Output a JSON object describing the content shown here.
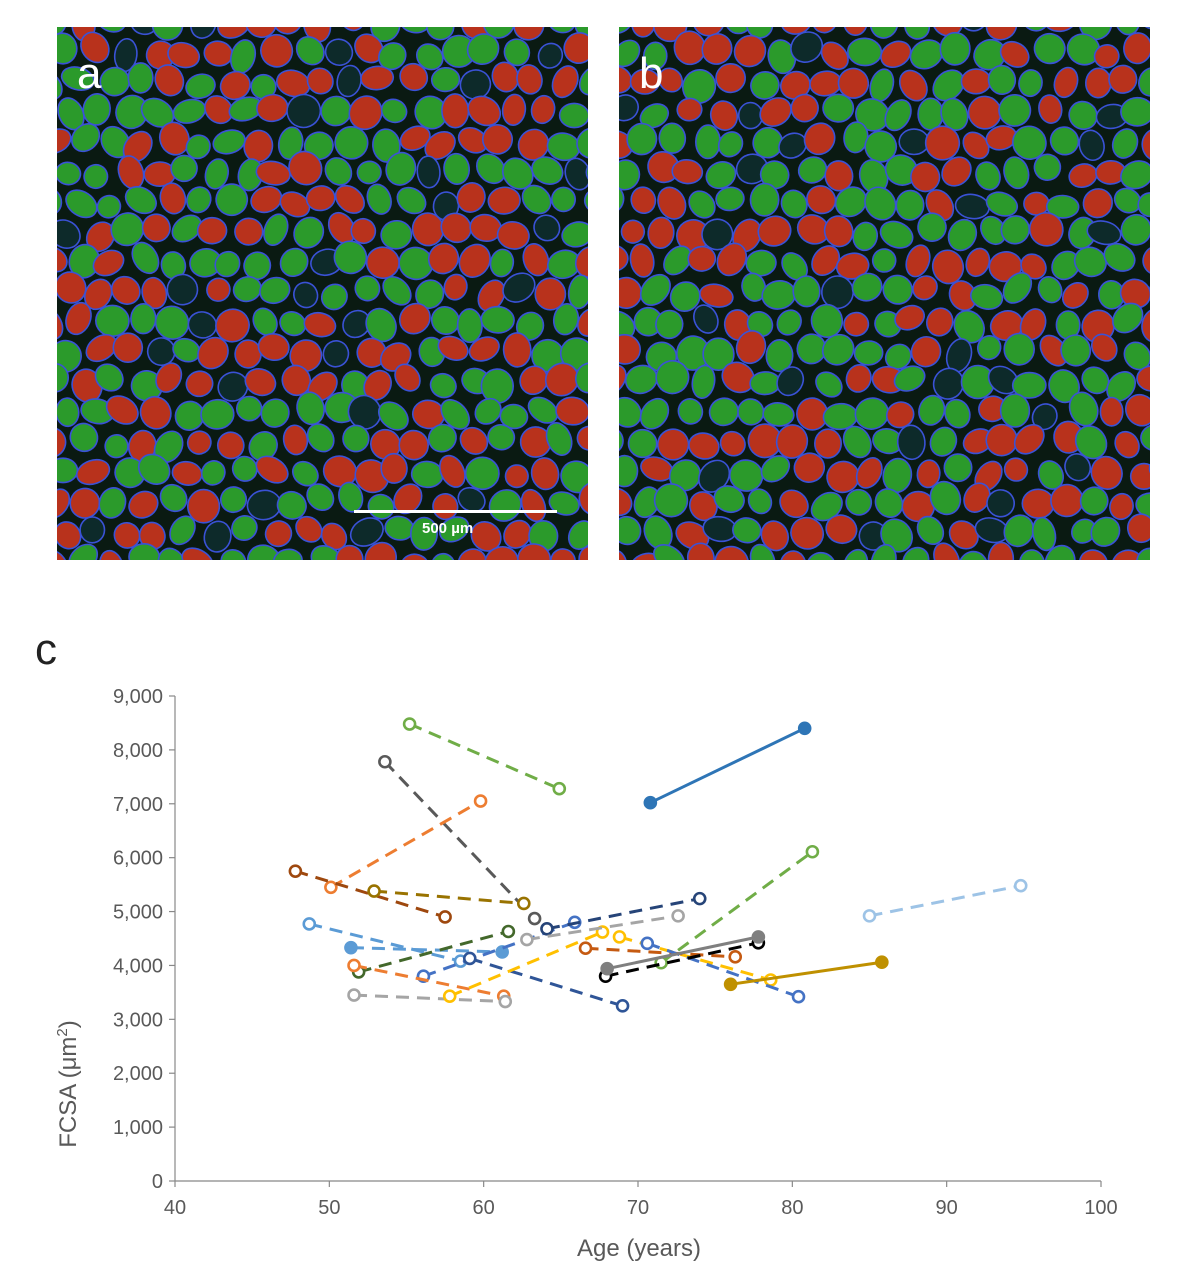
{
  "panels": {
    "a": {
      "label": "a",
      "scale_bar": "500 µm"
    },
    "b": {
      "label": "b"
    }
  },
  "chart_panel_label": "c",
  "colors": {
    "type1_fiber": "#2b9a2b",
    "type2_fiber": "#b8321c",
    "membrane": "#3a52d6"
  },
  "chart_data": {
    "type": "scatter",
    "title": "",
    "xlabel": "Age (years)",
    "ylabel_base": "FCSA (μm",
    "ylabel_sup": "2",
    "ylabel_end": ")",
    "xlim": [
      40,
      100
    ],
    "ylim": [
      0,
      9000
    ],
    "xticks": [
      40,
      50,
      60,
      70,
      80,
      90,
      100
    ],
    "yticks": [
      0,
      1000,
      2000,
      3000,
      4000,
      5000,
      6000,
      7000,
      8000,
      9000
    ],
    "ytick_labels": [
      "0",
      "1,000",
      "2,000",
      "3,000",
      "4,000",
      "5,000",
      "6,000",
      "7,000",
      "8,000",
      "9,000"
    ],
    "series": [
      {
        "color": "#70ad47",
        "dash": true,
        "filled": false,
        "points": [
          [
            55.2,
            8480
          ],
          [
            64.9,
            7280
          ]
        ]
      },
      {
        "color": "#2e75b6",
        "dash": false,
        "filled": true,
        "points": [
          [
            70.8,
            7020
          ],
          [
            80.8,
            8400
          ]
        ]
      },
      {
        "color": "#595959",
        "dash": true,
        "filled": false,
        "points": [
          [
            53.6,
            7780
          ],
          [
            63.3,
            4870
          ]
        ]
      },
      {
        "color": "#ed7d31",
        "dash": true,
        "filled": false,
        "points": [
          [
            50.1,
            5450
          ],
          [
            59.8,
            7050
          ]
        ]
      },
      {
        "color": "#9e480e",
        "dash": true,
        "filled": false,
        "points": [
          [
            47.8,
            5750
          ],
          [
            57.5,
            4900
          ]
        ]
      },
      {
        "color": "#997300",
        "dash": true,
        "filled": false,
        "points": [
          [
            52.9,
            5380
          ],
          [
            62.6,
            5150
          ]
        ]
      },
      {
        "color": "#70ad47",
        "dash": true,
        "filled": false,
        "points": [
          [
            71.5,
            4050
          ],
          [
            81.3,
            6110
          ]
        ]
      },
      {
        "color": "#9dc3e6",
        "dash": true,
        "filled": false,
        "points": [
          [
            85.0,
            4920
          ],
          [
            94.8,
            5480
          ]
        ]
      },
      {
        "color": "#5b9bd5",
        "dash": true,
        "filled": false,
        "points": [
          [
            48.7,
            4770
          ],
          [
            58.5,
            4080
          ]
        ]
      },
      {
        "color": "#5b9bd5",
        "dash": true,
        "filled": true,
        "points": [
          [
            51.4,
            4330
          ],
          [
            61.2,
            4250
          ]
        ]
      },
      {
        "color": "#4472c4",
        "dash": true,
        "filled": false,
        "points": [
          [
            56.1,
            3800
          ],
          [
            65.9,
            4800
          ]
        ]
      },
      {
        "color": "#264478",
        "dash": true,
        "filled": false,
        "points": [
          [
            64.1,
            4680
          ],
          [
            74.0,
            5240
          ]
        ]
      },
      {
        "color": "#43682b",
        "dash": true,
        "filled": false,
        "points": [
          [
            51.9,
            3880
          ],
          [
            61.6,
            4630
          ]
        ]
      },
      {
        "color": "#ed7d31",
        "dash": true,
        "filled": false,
        "points": [
          [
            51.6,
            4000
          ],
          [
            61.3,
            3430
          ]
        ]
      },
      {
        "color": "#a5a5a5",
        "dash": true,
        "filled": false,
        "points": [
          [
            51.6,
            3450
          ],
          [
            61.4,
            3330
          ]
        ]
      },
      {
        "color": "#2f5597",
        "dash": true,
        "filled": false,
        "points": [
          [
            59.1,
            4130
          ],
          [
            69.0,
            3250
          ]
        ]
      },
      {
        "color": "#ffc000",
        "dash": true,
        "filled": false,
        "points": [
          [
            57.8,
            3430
          ],
          [
            67.7,
            4620
          ]
        ]
      },
      {
        "color": "#a5a5a5",
        "dash": true,
        "filled": false,
        "points": [
          [
            62.8,
            4480
          ],
          [
            72.6,
            4920
          ]
        ]
      },
      {
        "color": "#ffc000",
        "dash": true,
        "filled": false,
        "points": [
          [
            68.8,
            4530
          ],
          [
            78.6,
            3730
          ]
        ]
      },
      {
        "color": "#c55a11",
        "dash": true,
        "filled": false,
        "points": [
          [
            66.6,
            4320
          ],
          [
            76.3,
            4160
          ]
        ]
      },
      {
        "color": "#4472c4",
        "dash": true,
        "filled": false,
        "points": [
          [
            70.6,
            4410
          ],
          [
            80.4,
            3420
          ]
        ]
      },
      {
        "color": "#000000",
        "dash": true,
        "filled": false,
        "points": [
          [
            67.9,
            3800
          ],
          [
            77.8,
            4420
          ]
        ]
      },
      {
        "color": "#7f7f7f",
        "dash": false,
        "filled": true,
        "points": [
          [
            68.0,
            3940
          ],
          [
            77.8,
            4530
          ]
        ]
      },
      {
        "color": "#bf9000",
        "dash": false,
        "filled": true,
        "points": [
          [
            76.0,
            3650
          ],
          [
            85.8,
            4060
          ]
        ]
      }
    ]
  }
}
